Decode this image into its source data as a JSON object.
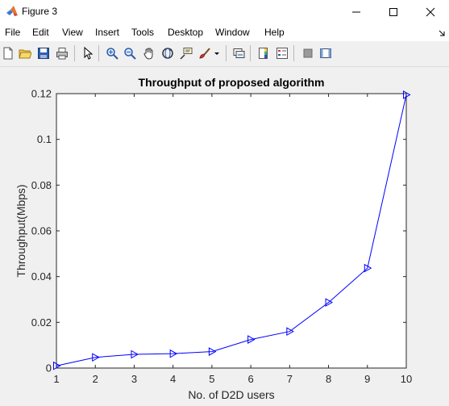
{
  "window": {
    "title": "Figure 3"
  },
  "menu": {
    "items": [
      "File",
      "Edit",
      "View",
      "Insert",
      "Tools",
      "Desktop",
      "Window",
      "Help"
    ]
  },
  "toolbar": {
    "buttons": [
      "new-figure-icon",
      "open-file-icon",
      "save-icon",
      "print-icon",
      "edit-plot-arrow-icon",
      "zoom-in-icon",
      "zoom-out-icon",
      "pan-hand-icon",
      "rotate-3d-icon",
      "data-cursor-icon",
      "brush-icon",
      "link-plot-icon",
      "insert-colorbar-icon",
      "insert-legend-icon",
      "hide-plot-tools-icon",
      "show-plot-tools-icon"
    ]
  },
  "chart_data": {
    "type": "line",
    "title": "Throughput of proposed algorithm",
    "xlabel": "No. of D2D users",
    "ylabel": "Throughput(Mbps)",
    "x": [
      1,
      2,
      3,
      4,
      5,
      6,
      7,
      8,
      9,
      10
    ],
    "series": [
      {
        "values": [
          0.001,
          0.0047,
          0.006,
          0.0063,
          0.0072,
          0.0125,
          0.016,
          0.0287,
          0.0437,
          0.1195
        ],
        "color": "#0000ff",
        "marker": "triangle-right"
      }
    ],
    "xlim": [
      1,
      10
    ],
    "ylim": [
      0,
      0.12
    ],
    "xticks": [
      1,
      2,
      3,
      4,
      5,
      6,
      7,
      8,
      9,
      10
    ],
    "xtick_labels": [
      "1",
      "2",
      "3",
      "4",
      "5",
      "6",
      "7",
      "8",
      "9",
      "10"
    ],
    "yticks": [
      0,
      0.02,
      0.04,
      0.06,
      0.08,
      0.1,
      0.12
    ],
    "ytick_labels": [
      "0",
      "0.02",
      "0.04",
      "0.06",
      "0.08",
      "0.1",
      "0.12"
    ],
    "grid": false,
    "legend": "none"
  }
}
